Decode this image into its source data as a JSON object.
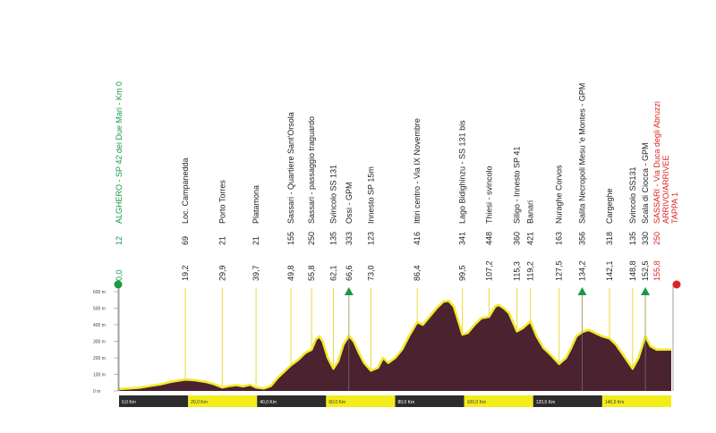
{
  "chart_data": {
    "type": "area",
    "title": "",
    "xlabel": "",
    "ylabel": "",
    "xlim": [
      0,
      160
    ],
    "ylim": [
      0,
      600
    ],
    "y_ticks": [
      "600 m",
      "500 m",
      "400 m",
      "300 m",
      "200 m",
      "100 m",
      "0 m"
    ],
    "km_bar": [
      "0,0 Km",
      "20,0 Km",
      "40,0 Km",
      "60,0 Km",
      "80,0 Km",
      "100,0 Km",
      "120,0 Km",
      "140,0 Km"
    ],
    "colors": {
      "area": "#4a2230",
      "line": "#f2ea2a",
      "start": "#1a9a46",
      "finish": "#e02424",
      "gpm": "#1a9a46",
      "marker": "#e6dc3a"
    },
    "waypoints": [
      {
        "km": "0,0",
        "alt": "12",
        "name": "ALGHERO - SP 42 dei Due Mari - Km 0",
        "type": "start"
      },
      {
        "km": "19,2",
        "alt": "69",
        "name": "Loc. Campanedda"
      },
      {
        "km": "29,9",
        "alt": "21",
        "name": "Porto Torres"
      },
      {
        "km": "39,7",
        "alt": "21",
        "name": "Platamona"
      },
      {
        "km": "49,8",
        "alt": "155",
        "name": "Sassari - Quartiere Sant'Orsola"
      },
      {
        "km": "55,8",
        "alt": "250",
        "name": "Sassari - passaggio traguardo"
      },
      {
        "km": "62,1",
        "alt": "135",
        "name": "Svincolo SS 131"
      },
      {
        "km": "66,6",
        "alt": "333",
        "name": "Ossi - GPM",
        "type": "gpm"
      },
      {
        "km": "73,0",
        "alt": "123",
        "name": "Innesto SP 15m"
      },
      {
        "km": "86,4",
        "alt": "416",
        "name": "Ittiri centro - Via IX Novembre"
      },
      {
        "km": "99,5",
        "alt": "341",
        "name": "Lago Bidighinzu - SS 131 bis"
      },
      {
        "km": "107,2",
        "alt": "448",
        "name": "Thiesi - svincolo"
      },
      {
        "km": "115,3",
        "alt": "360",
        "name": "Siligo - Innesto SP 41"
      },
      {
        "km": "119,2",
        "alt": "421",
        "name": "Banari"
      },
      {
        "km": "127,5",
        "alt": "163",
        "name": "Nuraghe Corvos"
      },
      {
        "km": "134,2",
        "alt": "356",
        "name": "Salita Necropoli Mesu 'e Montes - GPM",
        "type": "gpm"
      },
      {
        "km": "142,1",
        "alt": "318",
        "name": "Cargeghe"
      },
      {
        "km": "148,8",
        "alt": "135",
        "name": "Svincolo SS131"
      },
      {
        "km": "152,5",
        "alt": "330",
        "name": "Scala di Ciocca - GPM",
        "type": "gpm"
      },
      {
        "km": "155,8",
        "alt": "250",
        "name": "SASSARI - Via Duca degli Abruzzi",
        "name2": "ARRIVO/ARRIVEE",
        "name3": "TAPPA 1",
        "type": "finish"
      }
    ],
    "profile": [
      [
        0,
        12
      ],
      [
        3,
        15
      ],
      [
        6,
        20
      ],
      [
        9,
        30
      ],
      [
        12,
        40
      ],
      [
        15,
        55
      ],
      [
        19.2,
        69
      ],
      [
        22,
        65
      ],
      [
        25,
        55
      ],
      [
        27,
        45
      ],
      [
        29.9,
        21
      ],
      [
        32,
        30
      ],
      [
        34,
        35
      ],
      [
        36,
        28
      ],
      [
        38,
        38
      ],
      [
        39.7,
        21
      ],
      [
        42,
        15
      ],
      [
        44,
        30
      ],
      [
        46,
        80
      ],
      [
        49.8,
        155
      ],
      [
        52,
        190
      ],
      [
        54,
        230
      ],
      [
        55.8,
        250
      ],
      [
        57,
        310
      ],
      [
        58,
        330
      ],
      [
        59,
        300
      ],
      [
        60.5,
        200
      ],
      [
        62.1,
        135
      ],
      [
        63.5,
        180
      ],
      [
        65,
        280
      ],
      [
        66.6,
        333
      ],
      [
        68,
        300
      ],
      [
        69.5,
        230
      ],
      [
        71,
        170
      ],
      [
        73,
        123
      ],
      [
        75,
        140
      ],
      [
        76.5,
        200
      ],
      [
        78,
        170
      ],
      [
        80,
        200
      ],
      [
        82,
        250
      ],
      [
        84,
        330
      ],
      [
        86.4,
        416
      ],
      [
        88,
        400
      ],
      [
        90,
        450
      ],
      [
        92,
        500
      ],
      [
        94,
        540
      ],
      [
        95.5,
        545
      ],
      [
        97,
        510
      ],
      [
        99.5,
        341
      ],
      [
        101,
        350
      ],
      [
        103,
        400
      ],
      [
        105,
        440
      ],
      [
        107.2,
        448
      ],
      [
        109,
        510
      ],
      [
        110,
        520
      ],
      [
        111.5,
        500
      ],
      [
        113,
        470
      ],
      [
        115.3,
        360
      ],
      [
        117,
        380
      ],
      [
        119.2,
        421
      ],
      [
        121,
        330
      ],
      [
        123,
        260
      ],
      [
        125,
        220
      ],
      [
        127.5,
        163
      ],
      [
        129.5,
        200
      ],
      [
        131,
        260
      ],
      [
        132.5,
        330
      ],
      [
        134.2,
        356
      ],
      [
        136,
        370
      ],
      [
        138,
        350
      ],
      [
        140,
        330
      ],
      [
        142.1,
        318
      ],
      [
        144,
        280
      ],
      [
        146,
        220
      ],
      [
        148.8,
        135
      ],
      [
        150.5,
        200
      ],
      [
        152.5,
        330
      ],
      [
        154,
        270
      ],
      [
        155.8,
        250
      ]
    ]
  }
}
